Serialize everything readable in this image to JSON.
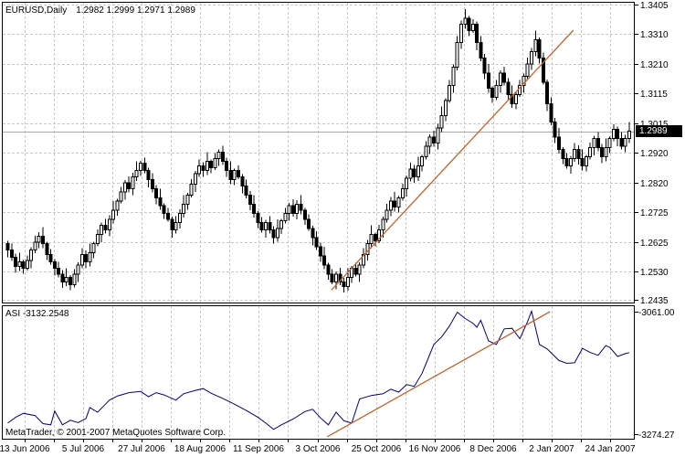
{
  "window": {
    "symbol_label": "EURUSD,Daily",
    "quote_label": "1.2982 1.2999 1.2971 1.2989"
  },
  "footer": {
    "text": "MetaTrader, © 2001-2007 MetaQuotes Software Corp."
  },
  "indicator_panel": {
    "label": "ASI -3132.2548",
    "axis_ticks": [
      -3061.0,
      -3274.27
    ]
  },
  "price_axis": {
    "ticks": [
      1.3405,
      1.331,
      1.321,
      1.3115,
      1.3015,
      1.292,
      1.282,
      1.2725,
      1.2625,
      1.253,
      1.2435
    ],
    "current_price_label": "1.2989",
    "current_price": 1.2989
  },
  "time_axis": [
    "13 Jun 2006",
    "5 Jul 2006",
    "27 Jul 2006",
    "18 Aug 2006",
    "11 Sep 2006",
    "3 Oct 2006",
    "25 Oct 2006",
    "16 Nov 2006",
    "8 Dec 2006",
    "2 Jan 2007",
    "24 Jan 2007"
  ],
  "colors": {
    "background": "#ffffff",
    "border": "#000000",
    "grid": "#c8c8c8",
    "candle_outline": "#000000",
    "bull_fill": "#ffffff",
    "bear_fill": "#000000",
    "asi_line": "#000080",
    "trendline": "#c8632c",
    "current_price_line": "#a8a8a8",
    "tag_bg": "#000000",
    "tag_text": "#ffffff"
  },
  "chart_data": [
    {
      "type": "candlestick",
      "title": "EURUSD,Daily",
      "ylabel": "price",
      "ylim": [
        1.2435,
        1.3405
      ],
      "y_ticks": [
        1.3405,
        1.331,
        1.321,
        1.3115,
        1.3015,
        1.292,
        1.282,
        1.2725,
        1.2625,
        1.253,
        1.2435
      ],
      "x_labels": [
        "13 Jun 2006",
        "5 Jul 2006",
        "27 Jul 2006",
        "18 Aug 2006",
        "11 Sep 2006",
        "3 Oct 2006",
        "25 Oct 2006",
        "16 Nov 2006",
        "8 Dec 2006",
        "2 Jan 2007",
        "24 Jan 2007"
      ],
      "grid": true,
      "current_price": 1.2989,
      "open_first": 1.262,
      "wick_up_cycle": [
        0.0009,
        0.0021,
        0.0013,
        0.003,
        0.0007,
        0.0017
      ],
      "wick_down_cycle": [
        0.0018,
        0.0008,
        0.0025,
        0.0011,
        0.002,
        0.0014
      ],
      "closes": [
        1.26,
        1.2575,
        1.2545,
        1.256,
        1.254,
        1.2565,
        1.26,
        1.2625,
        1.2645,
        1.262,
        1.2585,
        1.256,
        1.254,
        1.252,
        1.2495,
        1.251,
        1.2485,
        1.252,
        1.255,
        1.2585,
        1.256,
        1.259,
        1.262,
        1.265,
        1.268,
        1.2665,
        1.27,
        1.273,
        1.276,
        1.279,
        1.282,
        1.28,
        1.284,
        1.286,
        1.2885,
        1.286,
        1.283,
        1.28,
        1.277,
        1.2745,
        1.272,
        1.27,
        1.2665,
        1.269,
        1.272,
        1.275,
        1.278,
        1.2815,
        1.285,
        1.2875,
        1.286,
        1.289,
        1.287,
        1.29,
        1.292,
        1.289,
        1.286,
        1.283,
        1.286,
        1.284,
        1.281,
        1.278,
        1.275,
        1.272,
        1.269,
        1.2665,
        1.269,
        1.2665,
        1.264,
        1.267,
        1.2695,
        1.272,
        1.2745,
        1.272,
        1.275,
        1.273,
        1.27,
        1.267,
        1.264,
        1.261,
        1.258,
        1.255,
        1.252,
        1.2495,
        1.252,
        1.2495,
        1.248,
        1.251,
        1.254,
        1.252,
        1.255,
        1.2585,
        1.262,
        1.265,
        1.263,
        1.2665,
        1.27,
        1.273,
        1.276,
        1.274,
        1.277,
        1.28,
        1.2835,
        1.2865,
        1.284,
        1.2875,
        1.2905,
        1.294,
        1.297,
        1.295,
        1.3,
        1.304,
        1.309,
        1.314,
        1.32,
        1.328,
        1.334,
        1.336,
        1.332,
        1.334,
        1.328,
        1.323,
        1.318,
        1.313,
        1.31,
        1.314,
        1.318,
        1.315,
        1.311,
        1.308,
        1.311,
        1.314,
        1.317,
        1.321,
        1.325,
        1.329,
        1.323,
        1.315,
        1.308,
        1.302,
        1.297,
        1.293,
        1.29,
        1.2875,
        1.29,
        1.293,
        1.29,
        1.2875,
        1.2905,
        1.2935,
        1.2965,
        1.2935,
        1.2905,
        1.2935,
        1.2965,
        1.2995,
        1.2965,
        1.294,
        1.2965,
        1.2989
      ],
      "trendline": {
        "x1_bar": 82.8,
        "p1": 1.2468,
        "x2_bar": 144.7,
        "p2": 1.3321
      }
    },
    {
      "type": "line",
      "title": "ASI",
      "current_value": -3132.2548,
      "ylim": [
        -3274.27,
        -3061.0
      ],
      "y_ticks": [
        -3061.0,
        -3274.27
      ],
      "grid": true,
      "points": [
        [
          0,
          -3255
        ],
        [
          2,
          -3245
        ],
        [
          4,
          -3238
        ],
        [
          7,
          -3242
        ],
        [
          9,
          -3256
        ],
        [
          11,
          -3258
        ],
        [
          12,
          -3234
        ],
        [
          14,
          -3258
        ],
        [
          16,
          -3250
        ],
        [
          18,
          -3254
        ],
        [
          20,
          -3247
        ],
        [
          21,
          -3228
        ],
        [
          23,
          -3236
        ],
        [
          25,
          -3222
        ],
        [
          26,
          -3215
        ],
        [
          28,
          -3208
        ],
        [
          31,
          -3202
        ],
        [
          34,
          -3200
        ],
        [
          36,
          -3209
        ],
        [
          38,
          -3202
        ],
        [
          40,
          -3206
        ],
        [
          43,
          -3215
        ],
        [
          45,
          -3204
        ],
        [
          48,
          -3198
        ],
        [
          50,
          -3195
        ],
        [
          52,
          -3203
        ],
        [
          55,
          -3212
        ],
        [
          58,
          -3222
        ],
        [
          61,
          -3233
        ],
        [
          64,
          -3245
        ],
        [
          66,
          -3255
        ],
        [
          68,
          -3266
        ],
        [
          70,
          -3258
        ],
        [
          73,
          -3248
        ],
        [
          76,
          -3235
        ],
        [
          78,
          -3231
        ],
        [
          80,
          -3246
        ],
        [
          82,
          -3258
        ],
        [
          84,
          -3236
        ],
        [
          86,
          -3251
        ],
        [
          88,
          -3255
        ],
        [
          90,
          -3213
        ],
        [
          93,
          -3207
        ],
        [
          96,
          -3204
        ],
        [
          98,
          -3196
        ],
        [
          100,
          -3201
        ],
        [
          102,
          -3188
        ],
        [
          104,
          -3191
        ],
        [
          106,
          -3168
        ],
        [
          108,
          -3135
        ],
        [
          109,
          -3118
        ],
        [
          111,
          -3105
        ],
        [
          113,
          -3086
        ],
        [
          115,
          -3062
        ],
        [
          117,
          -3073
        ],
        [
          119,
          -3081
        ],
        [
          120,
          -3088
        ],
        [
          121,
          -3076
        ],
        [
          123,
          -3112
        ],
        [
          125,
          -3118
        ],
        [
          127,
          -3091
        ],
        [
          129,
          -3090
        ],
        [
          131,
          -3108
        ],
        [
          133,
          -3078
        ],
        [
          134,
          -3060
        ],
        [
          136,
          -3118
        ],
        [
          138,
          -3126
        ],
        [
          141,
          -3146
        ],
        [
          143,
          -3151
        ],
        [
          145,
          -3150
        ],
        [
          147,
          -3125
        ],
        [
          149,
          -3132
        ],
        [
          151,
          -3137
        ],
        [
          153,
          -3120
        ],
        [
          154,
          -3123
        ],
        [
          156,
          -3139
        ],
        [
          158,
          -3134
        ],
        [
          159,
          -3132.25
        ]
      ],
      "trendline": {
        "x1_bar": 81.7,
        "v1": -3279,
        "x2_bar": 138.7,
        "v2": -3061
      }
    }
  ]
}
